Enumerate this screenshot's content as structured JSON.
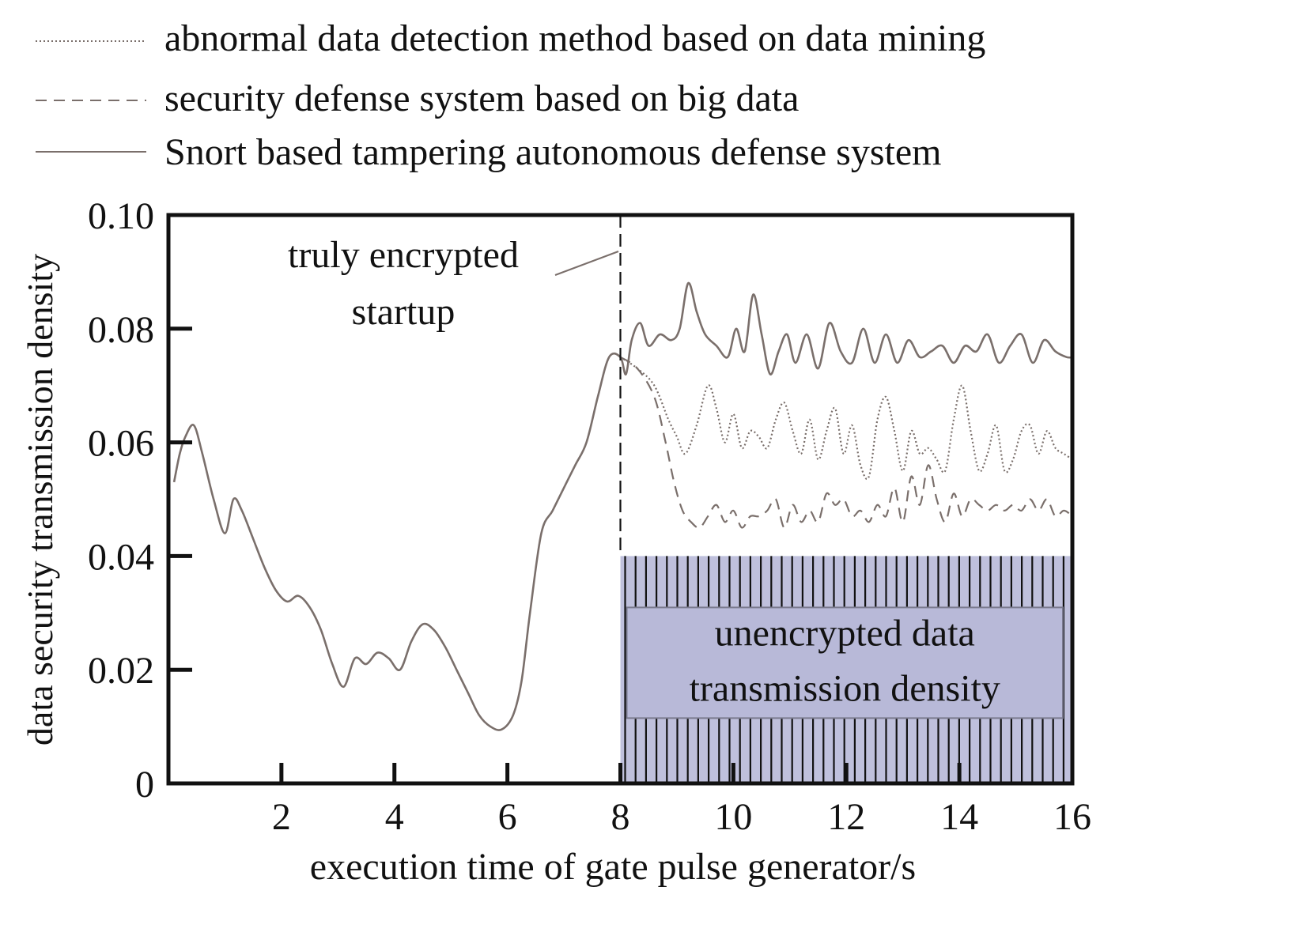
{
  "chart_data": {
    "type": "line",
    "xlabel": "execution time of gate pulse generator/s",
    "ylabel": "data security transmission density",
    "xlim": [
      0,
      16
    ],
    "ylim": [
      0,
      0.1
    ],
    "x_ticks": [
      2,
      4,
      6,
      8,
      10,
      12,
      14,
      16
    ],
    "x_tick_labels": [
      "2",
      "4",
      "6",
      "8",
      "10",
      "12",
      "14",
      "16"
    ],
    "y_ticks": [
      0,
      0.02,
      0.04,
      0.06,
      0.08,
      0.1
    ],
    "y_tick_labels": [
      "0",
      "0.02",
      "0.04",
      "0.06",
      "0.08",
      "0.10"
    ],
    "grid": false,
    "legend_position": "top",
    "line_color": "#7a6f6b",
    "series": [
      {
        "name": "abnormal data detection method based on data mining",
        "style": "dotted",
        "x": [
          8.0,
          8.3,
          8.6,
          8.85,
          9.0,
          9.15,
          9.35,
          9.55,
          9.7,
          9.85,
          10.0,
          10.15,
          10.3,
          10.45,
          10.6,
          10.75,
          10.9,
          11.05,
          11.2,
          11.35,
          11.5,
          11.65,
          11.8,
          11.95,
          12.1,
          12.25,
          12.4,
          12.55,
          12.7,
          12.85,
          13.0,
          13.15,
          13.3,
          13.45,
          13.6,
          13.75,
          13.9,
          14.05,
          14.2,
          14.35,
          14.5,
          14.65,
          14.8,
          14.95,
          15.1,
          15.25,
          15.4,
          15.55,
          15.7,
          15.85,
          16.0
        ],
        "y": [
          0.075,
          0.073,
          0.07,
          0.064,
          0.061,
          0.058,
          0.063,
          0.07,
          0.066,
          0.06,
          0.065,
          0.059,
          0.062,
          0.061,
          0.059,
          0.064,
          0.067,
          0.062,
          0.058,
          0.064,
          0.057,
          0.062,
          0.066,
          0.058,
          0.063,
          0.056,
          0.054,
          0.064,
          0.068,
          0.062,
          0.055,
          0.062,
          0.058,
          0.059,
          0.057,
          0.055,
          0.064,
          0.07,
          0.062,
          0.055,
          0.058,
          0.063,
          0.055,
          0.057,
          0.062,
          0.063,
          0.058,
          0.062,
          0.059,
          0.058,
          0.057
        ]
      },
      {
        "name": "security defense system based on big data",
        "style": "dashed",
        "x": [
          8.0,
          8.3,
          8.6,
          8.8,
          8.95,
          9.1,
          9.25,
          9.4,
          9.55,
          9.7,
          9.85,
          10.0,
          10.15,
          10.3,
          10.45,
          10.6,
          10.75,
          10.9,
          11.05,
          11.2,
          11.35,
          11.5,
          11.65,
          11.8,
          11.95,
          12.1,
          12.25,
          12.4,
          12.55,
          12.7,
          12.85,
          13.0,
          13.15,
          13.3,
          13.45,
          13.6,
          13.75,
          13.9,
          14.05,
          14.2,
          14.35,
          14.5,
          14.65,
          14.8,
          14.95,
          15.1,
          15.25,
          15.4,
          15.55,
          15.7,
          15.85,
          16.0
        ],
        "y": [
          0.075,
          0.073,
          0.068,
          0.06,
          0.053,
          0.048,
          0.046,
          0.045,
          0.047,
          0.049,
          0.046,
          0.048,
          0.045,
          0.047,
          0.047,
          0.048,
          0.05,
          0.045,
          0.049,
          0.046,
          0.048,
          0.046,
          0.051,
          0.049,
          0.05,
          0.047,
          0.048,
          0.046,
          0.049,
          0.047,
          0.052,
          0.046,
          0.054,
          0.049,
          0.056,
          0.05,
          0.046,
          0.051,
          0.047,
          0.05,
          0.049,
          0.048,
          0.049,
          0.048,
          0.049,
          0.048,
          0.05,
          0.048,
          0.05,
          0.047,
          0.048,
          0.047
        ]
      },
      {
        "name": "Snort based tampering autonomous defense system",
        "style": "solid",
        "x": [
          0.1,
          0.2,
          0.3,
          0.45,
          0.6,
          0.8,
          1.0,
          1.15,
          1.3,
          1.5,
          1.7,
          1.9,
          2.1,
          2.3,
          2.5,
          2.7,
          2.9,
          3.1,
          3.3,
          3.5,
          3.7,
          3.9,
          4.1,
          4.3,
          4.5,
          4.7,
          4.9,
          5.1,
          5.3,
          5.5,
          5.7,
          5.9,
          6.1,
          6.25,
          6.4,
          6.6,
          6.8,
          7.0,
          7.2,
          7.4,
          7.6,
          7.8,
          8.0,
          8.1,
          8.2,
          8.35,
          8.5,
          8.7,
          8.9,
          9.05,
          9.2,
          9.35,
          9.5,
          9.7,
          9.9,
          10.05,
          10.2,
          10.35,
          10.5,
          10.65,
          10.8,
          10.95,
          11.1,
          11.3,
          11.5,
          11.7,
          11.9,
          12.1,
          12.3,
          12.5,
          12.7,
          12.9,
          13.1,
          13.3,
          13.5,
          13.7,
          13.9,
          14.1,
          14.3,
          14.5,
          14.7,
          14.9,
          15.1,
          15.3,
          15.5,
          15.7,
          15.9,
          16.0
        ],
        "y": [
          0.053,
          0.058,
          0.061,
          0.063,
          0.058,
          0.05,
          0.044,
          0.05,
          0.048,
          0.043,
          0.038,
          0.034,
          0.032,
          0.033,
          0.031,
          0.027,
          0.021,
          0.017,
          0.022,
          0.021,
          0.023,
          0.022,
          0.02,
          0.025,
          0.028,
          0.027,
          0.024,
          0.02,
          0.016,
          0.012,
          0.01,
          0.0095,
          0.012,
          0.018,
          0.03,
          0.044,
          0.048,
          0.052,
          0.056,
          0.06,
          0.068,
          0.075,
          0.075,
          0.072,
          0.078,
          0.081,
          0.077,
          0.079,
          0.078,
          0.08,
          0.088,
          0.083,
          0.079,
          0.077,
          0.075,
          0.08,
          0.076,
          0.086,
          0.079,
          0.072,
          0.076,
          0.079,
          0.074,
          0.079,
          0.073,
          0.081,
          0.076,
          0.074,
          0.08,
          0.074,
          0.079,
          0.074,
          0.078,
          0.075,
          0.076,
          0.077,
          0.074,
          0.077,
          0.076,
          0.079,
          0.074,
          0.077,
          0.079,
          0.074,
          0.078,
          0.076,
          0.075,
          0.075
        ]
      }
    ],
    "annotations": {
      "truly_encrypted_line1": "truly encrypted",
      "truly_encrypted_line2": "startup",
      "divider_x": 8,
      "unencrypted_line1": "unencrypted data",
      "unencrypted_line2": "transmission density",
      "unencrypted_region": {
        "x": [
          8,
          16
        ],
        "y": [
          0,
          0.04
        ]
      },
      "region_fill": "#bfc0dc",
      "region_box_fill": "#b8b9d8"
    }
  }
}
